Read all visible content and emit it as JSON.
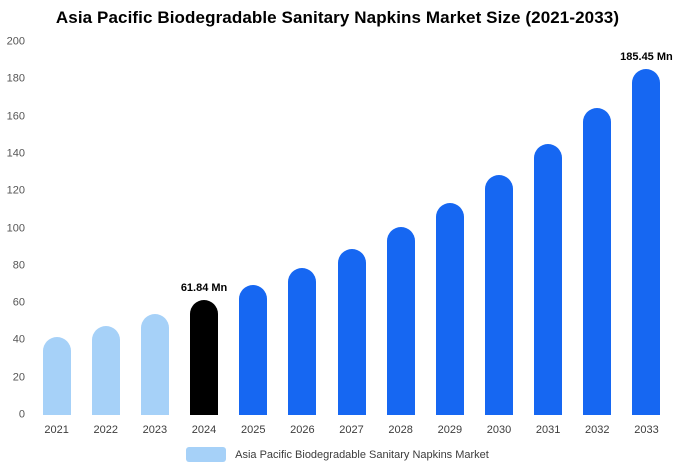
{
  "title": "Asia Pacific Biodegradable Sanitary Napkins Market Size (2021-2033)",
  "chart_data": {
    "type": "bar",
    "title": "Asia Pacific Biodegradable Sanitary Napkins Market Size (2021-2033)",
    "categories": [
      "2021",
      "2022",
      "2023",
      "2024",
      "2025",
      "2026",
      "2027",
      "2028",
      "2029",
      "2030",
      "2031",
      "2032",
      "2033"
    ],
    "values": [
      42,
      47.5,
      54,
      61.84,
      69.9,
      79,
      89.2,
      100.8,
      113.9,
      128.7,
      145.5,
      164.4,
      185.45
    ],
    "unit": "Mn",
    "bar_colors": [
      "#A6D1F8",
      "#A6D1F8",
      "#A6D1F8",
      "#000000",
      "#1667F2",
      "#1667F2",
      "#1667F2",
      "#1667F2",
      "#1667F2",
      "#1667F2",
      "#1667F2",
      "#1667F2",
      "#1667F2"
    ],
    "data_labels": {
      "2024": "61.84 Mn",
      "2033": "185.45 Mn"
    },
    "xlabel": "",
    "ylabel": "",
    "ylim": [
      0,
      200
    ],
    "ytick_step": 20,
    "grid": false,
    "legend_position": "bottom",
    "legend": "Asia Pacific Biodegradable Sanitary Napkins Market",
    "legend_color": "#A6D1F8"
  }
}
